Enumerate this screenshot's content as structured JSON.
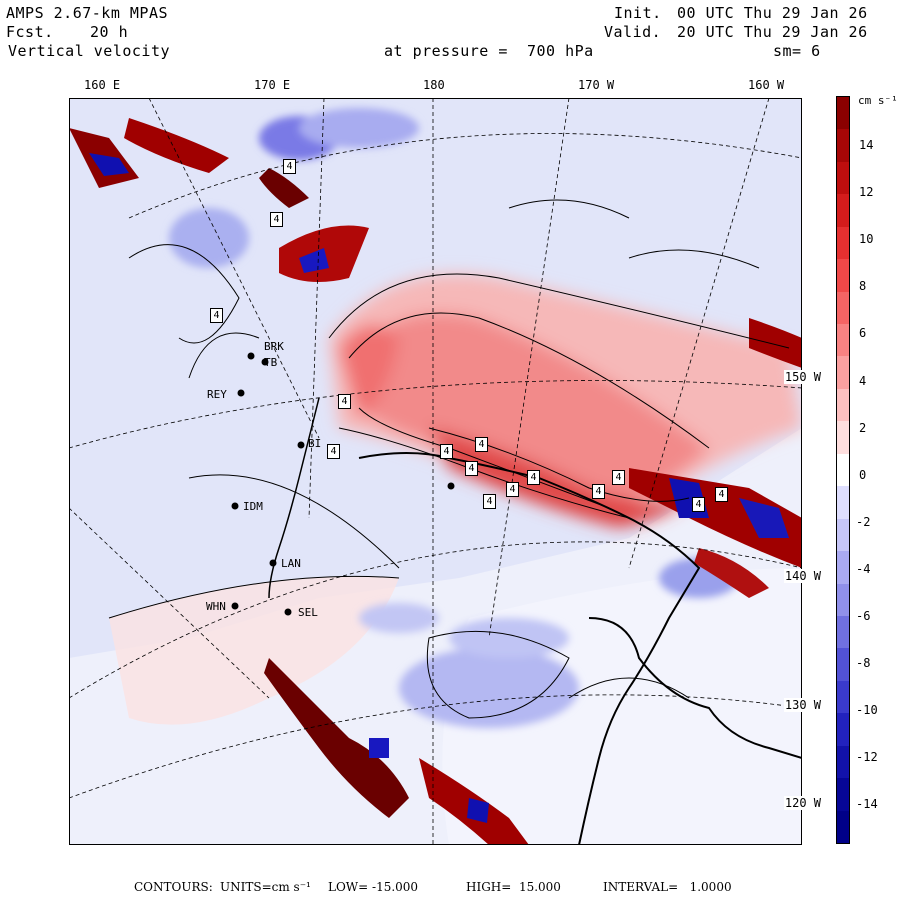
{
  "header": {
    "model": "AMPS 2.67-km MPAS",
    "forecast_label": "Fcst.",
    "forecast_value": "20 h",
    "field": "Vertical velocity",
    "init_label": "Init.",
    "init_time": "00 UTC Thu 29 Jan 26",
    "valid_label": "Valid.",
    "valid_time": "20 UTC Thu 29 Jan 26",
    "level": "at pressure =  700 hPa",
    "smooth": "sm= 6"
  },
  "longitude_labels": [
    "160 E",
    "170 E",
    "180",
    "170 W",
    "160 W"
  ],
  "latitude_labels": [
    "150 W",
    "140 W",
    "130 W",
    "120 W"
  ],
  "stations": [
    "BRK",
    "TB",
    "REY",
    "BI",
    "IDM",
    "LAN",
    "WHN",
    "SEL"
  ],
  "contour_labels": [
    "4",
    "4",
    "4",
    "4",
    "4",
    "4",
    "4",
    "4",
    "4",
    "4",
    "4",
    "4",
    "4",
    "4",
    "4"
  ],
  "colorbar": {
    "units": "cm s⁻¹",
    "ticks": [
      "14",
      "12",
      "10",
      "8",
      "6",
      "4",
      "2",
      "0",
      "-2",
      "-4",
      "-6",
      "-8",
      "-10",
      "-12",
      "-14"
    ],
    "colors": [
      "#8b0000",
      "#a60606",
      "#be0e0e",
      "#d41c1c",
      "#e53030",
      "#f04848",
      "#f56464",
      "#f88282",
      "#fba0a0",
      "#fdc0c0",
      "#fedede",
      "#ffffff",
      "#dedefe",
      "#c6c6f8",
      "#aaaaf2",
      "#9090ea",
      "#7070e0",
      "#5252d6",
      "#3a3acc",
      "#2222be",
      "#1212aa",
      "#060696",
      "#000088"
    ]
  },
  "footer": {
    "contours_label": "CONTOURS:",
    "units": "UNITS=cm s⁻¹",
    "low": "LOW= -15.000",
    "high": "HIGH=  15.000",
    "interval": "INTERVAL=   1.0000"
  }
}
